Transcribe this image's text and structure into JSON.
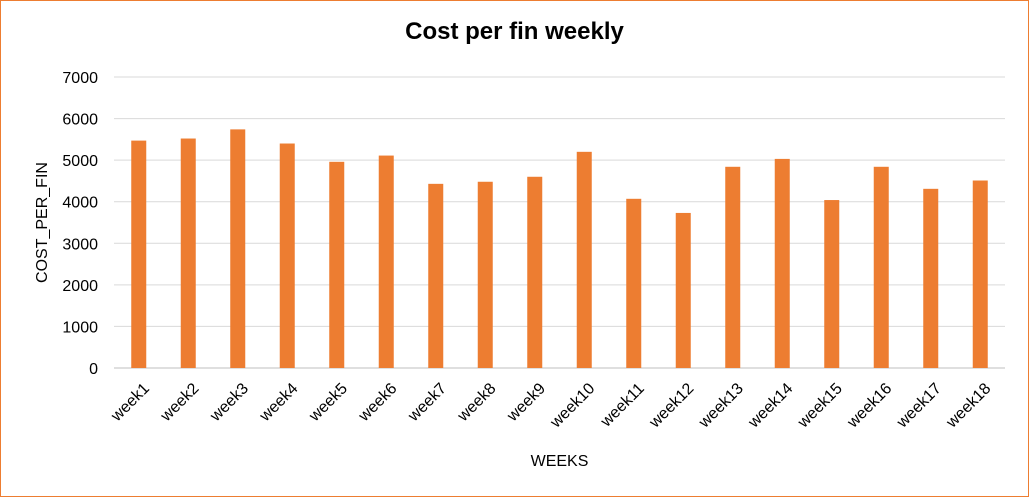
{
  "chart_data": {
    "type": "bar",
    "title": "Cost per fin weekly",
    "xlabel": "WEEKS",
    "ylabel": "COST_PER_FIN",
    "categories": [
      "week1",
      "week2",
      "week3",
      "week4",
      "week5",
      "week6",
      "week7",
      "week8",
      "week9",
      "week10",
      "week11",
      "week12",
      "week13",
      "week14",
      "week15",
      "week16",
      "week17",
      "week18"
    ],
    "values": [
      5470,
      5520,
      5740,
      5400,
      4960,
      5110,
      4430,
      4480,
      4600,
      5200,
      4070,
      3730,
      4840,
      5030,
      4040,
      4840,
      4310,
      4510
    ],
    "ylim": [
      0,
      7000
    ],
    "yticks": [
      0,
      1000,
      2000,
      3000,
      4000,
      5000,
      6000,
      7000
    ],
    "grid": true,
    "legend": "none",
    "colors": {
      "bar": "#ed7d31",
      "grid": "#d9d9d9",
      "frame": "#ed7d31"
    }
  }
}
